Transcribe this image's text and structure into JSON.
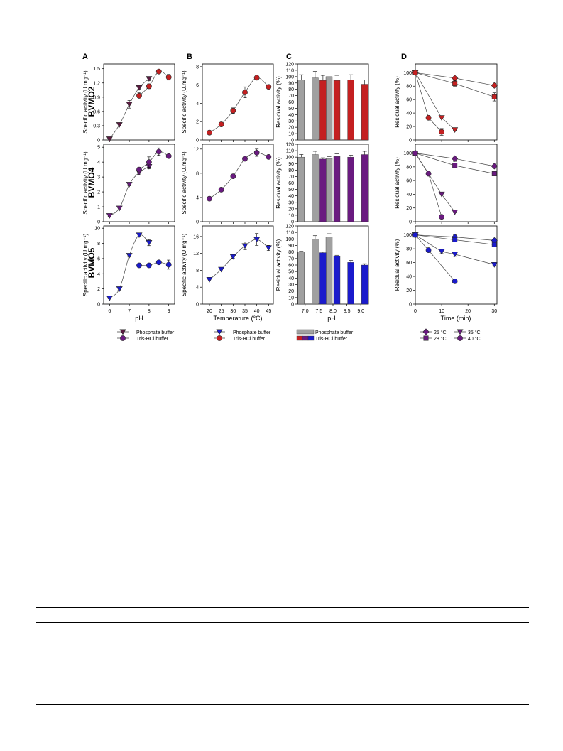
{
  "panel_letters": [
    "A",
    "B",
    "C",
    "D"
  ],
  "row_labels": [
    "BVMO2",
    "BVMO4",
    "BVMO5"
  ],
  "xlabels": [
    "pH",
    "Temperature (°C)",
    "pH",
    "Time (min)"
  ],
  "legends": {
    "A": [
      "Phosphate buffer",
      "Tris-HCl buffer"
    ],
    "B": [
      "Phosphate buffer",
      "Tris-HCl buffer"
    ],
    "C": [
      "Phosphate buffer",
      "Tris-HCl buffer"
    ],
    "D": [
      "25 °C",
      "35 °C",
      "28 °C",
      "40 °C"
    ]
  },
  "colors": {
    "BVMO2": "#c42021",
    "BVMO4": "#6a1a80",
    "BVMO5": "#1a1acc",
    "BVMO2_dark": "#5a1a40",
    "phosphate_bar": "#a0a0a0",
    "axis": "#000000"
  },
  "chart_data": [
    {
      "id": "A1",
      "panel": "A",
      "row": "BVMO2",
      "type": "scatter",
      "xlabel": "pH",
      "ylabel": "Specific activity (U.mg⁻¹)",
      "xlim": [
        5.7,
        9.3
      ],
      "ylim": [
        0,
        1.6
      ],
      "xticks": [
        6,
        7,
        8,
        9
      ],
      "yticks": [
        0,
        0.3,
        0.6,
        0.9,
        1.2,
        1.5
      ],
      "series": [
        {
          "name": "Phosphate buffer",
          "marker": "tri",
          "color": "BVMO2",
          "x": [
            6.0,
            6.5,
            7.0,
            7.5,
            8.0
          ],
          "y": [
            0.02,
            0.32,
            0.75,
            1.1,
            1.29
          ],
          "err": [
            0.02,
            0.03,
            0.08,
            0.03,
            0.04
          ]
        },
        {
          "name": "Tris-HCl buffer",
          "marker": "circle",
          "color": "BVMO2",
          "x": [
            7.5,
            8.0,
            8.5,
            9.0
          ],
          "y": [
            0.93,
            1.13,
            1.44,
            1.32
          ],
          "err": [
            0.07,
            0.05,
            0.03,
            0.06
          ]
        }
      ]
    },
    {
      "id": "A2",
      "panel": "A",
      "row": "BVMO4",
      "type": "scatter",
      "xlabel": "pH",
      "ylabel": "Specific activity (U.mg⁻¹)",
      "xlim": [
        5.7,
        9.3
      ],
      "ylim": [
        0,
        5.2
      ],
      "xticks": [
        6,
        7,
        8,
        9
      ],
      "yticks": [
        0,
        1,
        2,
        3,
        4,
        5
      ],
      "series": [
        {
          "name": "Phosphate buffer",
          "marker": "tri",
          "color": "BVMO4",
          "x": [
            6.0,
            6.5,
            7.0,
            7.5,
            8.0
          ],
          "y": [
            0.4,
            0.9,
            2.5,
            3.3,
            3.7
          ],
          "err": [
            0.05,
            0.1,
            0.1,
            0.15,
            0.15
          ]
        },
        {
          "name": "Tris-HCl buffer",
          "marker": "circle",
          "color": "BVMO4",
          "x": [
            7.5,
            8.0,
            8.5,
            9.0
          ],
          "y": [
            3.5,
            4.0,
            4.7,
            4.4
          ],
          "err": [
            0.15,
            0.35,
            0.25,
            0.1
          ]
        }
      ]
    },
    {
      "id": "A3",
      "panel": "A",
      "row": "BVMO5",
      "type": "scatter",
      "xlabel": "pH",
      "ylabel": "Specific activity (U.mg⁻¹)",
      "xlim": [
        5.7,
        9.3
      ],
      "ylim": [
        0,
        10.3
      ],
      "xticks": [
        6,
        7,
        8,
        9
      ],
      "yticks": [
        0,
        2,
        4,
        6,
        8,
        10
      ],
      "series": [
        {
          "name": "Phosphate buffer",
          "marker": "tri",
          "color": "BVMO5",
          "x": [
            6.0,
            6.5,
            7.0,
            7.5,
            8.0
          ],
          "y": [
            0.8,
            2.0,
            6.4,
            9.1,
            8.1
          ],
          "err": [
            0.1,
            0.15,
            0.2,
            0.2,
            0.4
          ]
        },
        {
          "name": "Tris-HCl buffer",
          "marker": "circle",
          "color": "BVMO5",
          "x": [
            7.5,
            8.0,
            8.5,
            9.0
          ],
          "y": [
            5.1,
            5.1,
            5.5,
            5.2
          ],
          "err": [
            0.15,
            0.15,
            0.2,
            0.6
          ]
        }
      ]
    },
    {
      "id": "B1",
      "panel": "B",
      "row": "BVMO2",
      "type": "scatter",
      "xlabel": "Temperature (°C)",
      "ylabel": "Specific activity (U.mg⁻¹)",
      "xlim": [
        17,
        47
      ],
      "ylim": [
        0,
        8.3
      ],
      "xticks": [
        20,
        25,
        30,
        35,
        40,
        45
      ],
      "yticks": [
        0,
        2,
        4,
        6,
        8
      ],
      "series": [
        {
          "name": "Tris-HCl buffer",
          "marker": "circle",
          "color": "BVMO2",
          "x": [
            20,
            25,
            30,
            35,
            40,
            45
          ],
          "y": [
            0.8,
            1.7,
            3.2,
            5.2,
            6.8,
            5.8
          ],
          "err": [
            0.1,
            0.1,
            0.3,
            0.6,
            0.1,
            0.1
          ]
        }
      ]
    },
    {
      "id": "B2",
      "panel": "B",
      "row": "BVMO4",
      "type": "scatter",
      "xlabel": "Temperature (°C)",
      "ylabel": "Specific activity (U.mg⁻¹)",
      "xlim": [
        17,
        47
      ],
      "ylim": [
        0,
        12.8
      ],
      "xticks": [
        20,
        25,
        30,
        35,
        40,
        45
      ],
      "yticks": [
        0,
        4,
        8,
        12
      ],
      "series": [
        {
          "name": "Tris-HCl buffer",
          "marker": "circle",
          "color": "BVMO4",
          "x": [
            20,
            25,
            30,
            35,
            40,
            45
          ],
          "y": [
            3.8,
            5.3,
            7.5,
            10.4,
            11.4,
            10.7
          ],
          "err": [
            0.1,
            0.2,
            0.2,
            0.3,
            0.6,
            0.2
          ]
        }
      ]
    },
    {
      "id": "B3",
      "panel": "B",
      "row": "BVMO5",
      "type": "scatter",
      "xlabel": "Temperature (°C)",
      "ylabel": "Specific activity (U.mg⁻¹)",
      "xlim": [
        17,
        47
      ],
      "ylim": [
        0,
        18.5
      ],
      "xticks": [
        20,
        25,
        30,
        35,
        40,
        45
      ],
      "yticks": [
        0,
        4,
        8,
        12,
        16
      ],
      "series": [
        {
          "name": "Phosphate buffer",
          "marker": "tri",
          "color": "BVMO5",
          "x": [
            20,
            25,
            30,
            35,
            40,
            45
          ],
          "y": [
            5.8,
            8.2,
            11.2,
            13.8,
            15.3,
            13.3
          ],
          "err": [
            0.3,
            0.4,
            0.4,
            0.9,
            1.4,
            0.6
          ]
        }
      ]
    },
    {
      "id": "C1",
      "panel": "C",
      "row": "BVMO2",
      "type": "bar",
      "xlabel": "pH",
      "ylabel": "Residual activity (%)",
      "ylim": [
        0,
        120
      ],
      "yticks": [
        0,
        10,
        20,
        30,
        40,
        50,
        60,
        70,
        80,
        90,
        100,
        110,
        120
      ],
      "categories": [
        "7.0",
        "7.5",
        "8.0",
        "8.5",
        "9.0"
      ],
      "series": [
        {
          "name": "Phosphate buffer",
          "color": "phosphate_bar",
          "values": [
            95,
            98,
            100,
            null,
            null
          ],
          "err": [
            8,
            10,
            7,
            null,
            null
          ]
        },
        {
          "name": "Tris-HCl buffer",
          "color": "BVMO2",
          "values": [
            null,
            94,
            94,
            95,
            88
          ],
          "err": [
            null,
            8,
            8,
            8,
            7
          ]
        }
      ]
    },
    {
      "id": "C2",
      "panel": "C",
      "row": "BVMO4",
      "type": "bar",
      "xlabel": "pH",
      "ylabel": "Residual activity (%)",
      "ylim": [
        0,
        120
      ],
      "yticks": [
        0,
        10,
        20,
        30,
        40,
        50,
        60,
        70,
        80,
        90,
        100,
        110,
        120
      ],
      "categories": [
        "7.0",
        "7.5",
        "8.0",
        "8.5",
        "9.0"
      ],
      "series": [
        {
          "name": "Phosphate buffer",
          "color": "phosphate_bar",
          "values": [
            100,
            104,
            98,
            null,
            null
          ],
          "err": [
            4,
            5,
            3,
            null,
            null
          ]
        },
        {
          "name": "Tris-HCl buffer",
          "color": "BVMO4",
          "values": [
            null,
            97,
            101,
            100,
            104
          ],
          "err": [
            null,
            2,
            4,
            3,
            5
          ]
        }
      ]
    },
    {
      "id": "C3",
      "panel": "C",
      "row": "BVMO5",
      "type": "bar",
      "xlabel": "pH",
      "ylabel": "Residual activity (%)",
      "ylim": [
        0,
        120
      ],
      "yticks": [
        0,
        10,
        20,
        30,
        40,
        50,
        60,
        70,
        80,
        90,
        100,
        110,
        120
      ],
      "categories": [
        "7.0",
        "7.5",
        "8.0",
        "8.5",
        "9.0"
      ],
      "series": [
        {
          "name": "Phosphate buffer",
          "color": "phosphate_bar",
          "values": [
            80,
            100,
            103,
            null,
            null
          ],
          "err": [
            1,
            5,
            5,
            null,
            null
          ]
        },
        {
          "name": "Tris-HCl buffer",
          "color": "BVMO5",
          "values": [
            null,
            79,
            74,
            64,
            60
          ],
          "err": [
            null,
            1,
            1,
            3,
            2
          ]
        }
      ]
    },
    {
      "id": "D1",
      "panel": "D",
      "row": "BVMO2",
      "type": "scatter",
      "xlabel": "Time (min)",
      "ylabel": "Residual activity (%)",
      "xlim": [
        0,
        31
      ],
      "ylim": [
        0,
        113
      ],
      "xticks": [
        0,
        10,
        20,
        30
      ],
      "yticks": [
        0,
        20,
        40,
        60,
        80,
        100
      ],
      "series": [
        {
          "name": "25 °C",
          "marker": "diamond",
          "color": "BVMO2",
          "x": [
            0,
            15,
            30
          ],
          "y": [
            100,
            92,
            81
          ],
          "err": [
            1,
            2,
            2
          ]
        },
        {
          "name": "28 °C",
          "marker": "square",
          "color": "BVMO2",
          "x": [
            0,
            15,
            30
          ],
          "y": [
            100,
            84,
            64
          ],
          "err": [
            1,
            4,
            6
          ]
        },
        {
          "name": "35 °C",
          "marker": "tri",
          "color": "BVMO2",
          "x": [
            0,
            10,
            15
          ],
          "y": [
            100,
            33,
            15
          ],
          "err": [
            1,
            2,
            1
          ]
        },
        {
          "name": "40 °C",
          "marker": "circle",
          "color": "BVMO2",
          "x": [
            0,
            5,
            10
          ],
          "y": [
            100,
            33,
            12
          ],
          "err": [
            1,
            2,
            5
          ]
        }
      ]
    },
    {
      "id": "D2",
      "panel": "D",
      "row": "BVMO4",
      "type": "scatter",
      "xlabel": "Time (min)",
      "ylabel": "Residual activity (%)",
      "xlim": [
        0,
        31
      ],
      "ylim": [
        0,
        113
      ],
      "xticks": [
        0,
        10,
        20,
        30
      ],
      "yticks": [
        0,
        20,
        40,
        60,
        80,
        100
      ],
      "series": [
        {
          "name": "25 °C",
          "marker": "diamond",
          "color": "BVMO4",
          "x": [
            0,
            15,
            30
          ],
          "y": [
            100,
            92,
            81
          ],
          "err": [
            1,
            4,
            1
          ]
        },
        {
          "name": "28 °C",
          "marker": "square",
          "color": "BVMO4",
          "x": [
            0,
            15,
            30
          ],
          "y": [
            100,
            82,
            70
          ],
          "err": [
            1,
            2,
            2
          ]
        },
        {
          "name": "35 °C",
          "marker": "tri",
          "color": "BVMO4",
          "x": [
            0,
            10,
            15
          ],
          "y": [
            100,
            40,
            14
          ],
          "err": [
            1,
            1,
            1
          ]
        },
        {
          "name": "40 °C",
          "marker": "circle",
          "color": "BVMO4",
          "x": [
            0,
            5,
            10
          ],
          "y": [
            100,
            70,
            7
          ],
          "err": [
            1,
            1,
            1
          ]
        }
      ]
    },
    {
      "id": "D3",
      "panel": "D",
      "row": "BVMO5",
      "type": "scatter",
      "xlabel": "Time (min)",
      "ylabel": "Residual activity (%)",
      "xlim": [
        0,
        31
      ],
      "ylim": [
        0,
        113
      ],
      "xticks": [
        0,
        10,
        20,
        30
      ],
      "yticks": [
        0,
        20,
        40,
        60,
        80,
        100
      ],
      "series": [
        {
          "name": "25 °C",
          "marker": "diamond",
          "color": "BVMO5",
          "x": [
            0,
            15,
            30
          ],
          "y": [
            100,
            97,
            92
          ],
          "err": [
            1,
            3,
            2
          ]
        },
        {
          "name": "28 °C",
          "marker": "square",
          "color": "BVMO5",
          "x": [
            0,
            15,
            30
          ],
          "y": [
            100,
            93,
            86
          ],
          "err": [
            1,
            2,
            2
          ]
        },
        {
          "name": "35 °C",
          "marker": "tri",
          "color": "BVMO5",
          "x": [
            0,
            10,
            15,
            30
          ],
          "y": [
            100,
            76,
            72,
            57
          ],
          "err": [
            1,
            3,
            3,
            1
          ]
        },
        {
          "name": "40 °C",
          "marker": "circle",
          "color": "BVMO5",
          "x": [
            0,
            5,
            15
          ],
          "y": [
            100,
            78,
            33
          ],
          "err": [
            1,
            1,
            1
          ]
        }
      ]
    }
  ]
}
